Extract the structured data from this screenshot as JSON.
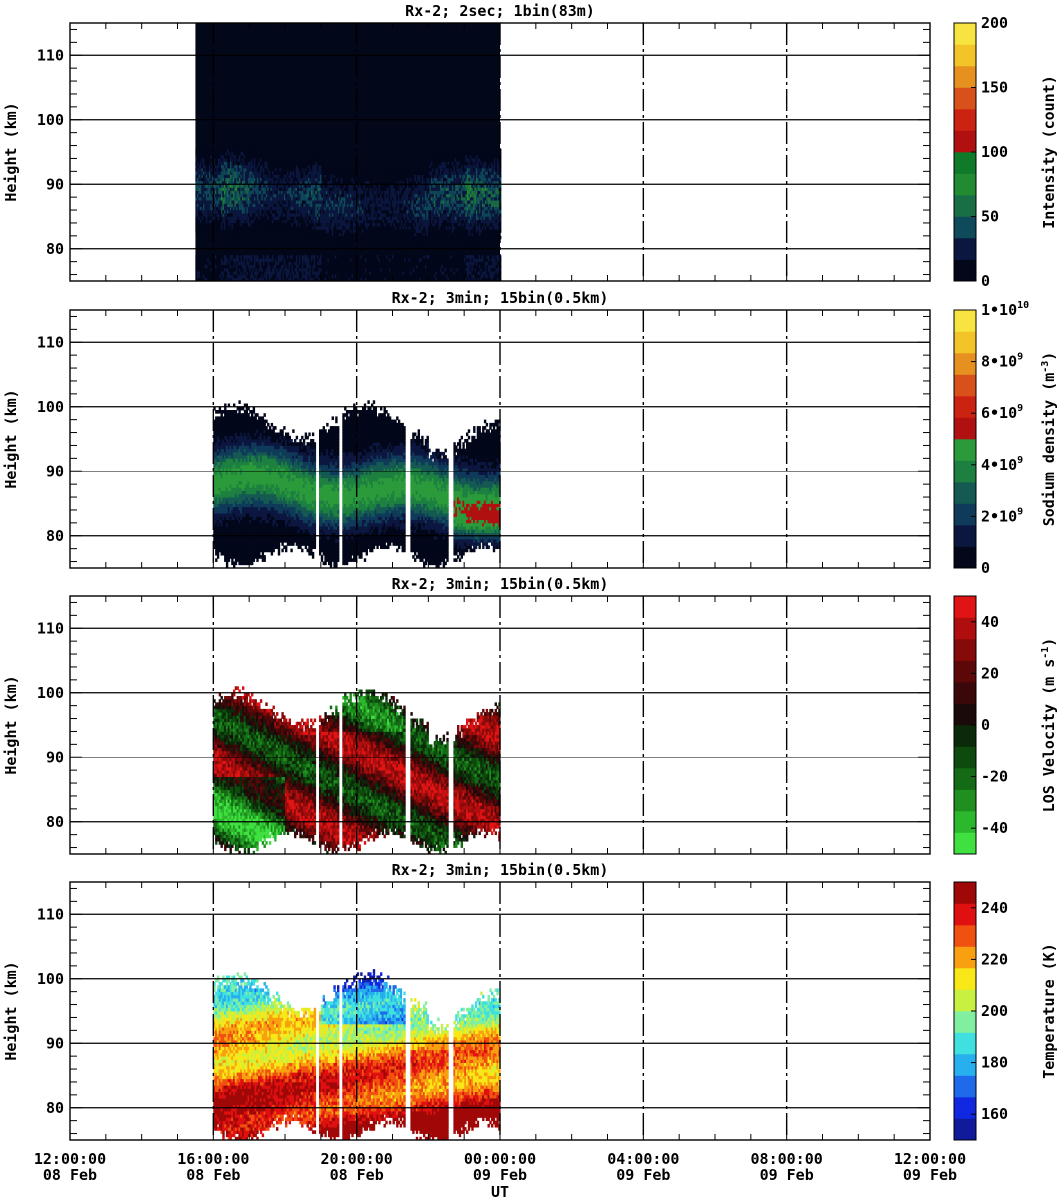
{
  "page": {
    "x_axis_label": "UT"
  },
  "x_ticks": [
    {
      "time": "12:00:00",
      "date": "08 Feb"
    },
    {
      "time": "16:00:00",
      "date": "08 Feb"
    },
    {
      "time": "20:00:00",
      "date": "08 Feb"
    },
    {
      "time": "00:00:00",
      "date": "09 Feb"
    },
    {
      "time": "04:00:00",
      "date": "09 Feb"
    },
    {
      "time": "08:00:00",
      "date": "09 Feb"
    },
    {
      "time": "12:00:00",
      "date": "09 Feb"
    }
  ],
  "chart_data": [
    {
      "type": "heatmap",
      "title": "Rx-2;  2sec; 1bin(83m)",
      "ylabel": "Height (km)",
      "xlim_hours": [
        0,
        24
      ],
      "ylim": [
        75,
        115
      ],
      "y_ticks": [
        80,
        90,
        100,
        110
      ],
      "data_extent_hours": [
        3.5,
        12.0
      ],
      "colorbar": {
        "label": "Intensity (count)",
        "range": [
          0,
          200
        ],
        "tick_labels": [
          {
            "value": 0,
            "text": "0"
          },
          {
            "value": 50,
            "text": "50"
          },
          {
            "value": 100,
            "text": "100"
          },
          {
            "value": 150,
            "text": "150"
          },
          {
            "value": 200,
            "text": "200"
          }
        ],
        "colors": [
          "#03071a",
          "#0c1740",
          "#0e4a5a",
          "#1a6e46",
          "#228a30",
          "#0f7a2a",
          "#b01010",
          "#cc2212",
          "#d8501a",
          "#e5901f",
          "#f2c428",
          "#f7e440"
        ]
      }
    },
    {
      "type": "heatmap",
      "title": "Rx-2; 3min; 15bin(0.5km)",
      "ylabel": "Height (km)",
      "xlim_hours": [
        0,
        24
      ],
      "ylim": [
        75,
        115
      ],
      "y_ticks": [
        80,
        90,
        100,
        110
      ],
      "data_extent_hours": [
        4.0,
        12.0
      ],
      "colorbar": {
        "label": "Sodium density (m-3)",
        "range": [
          0,
          10
        ],
        "tick_labels": [
          {
            "value": 0,
            "text": "0"
          },
          {
            "value": 2,
            "text": "2•10",
            "sup": "9"
          },
          {
            "value": 4,
            "text": "4•10",
            "sup": "9"
          },
          {
            "value": 6,
            "text": "6•10",
            "sup": "9"
          },
          {
            "value": 8,
            "text": "8•10",
            "sup": "9"
          },
          {
            "value": 10,
            "text": "1•10",
            "sup": "10"
          }
        ],
        "colors": [
          "#03071a",
          "#0c1740",
          "#0f3a5a",
          "#145a52",
          "#1d8040",
          "#2a9a3a",
          "#b01010",
          "#cc2212",
          "#d8501a",
          "#e5901f",
          "#f2c428",
          "#f7e440"
        ]
      }
    },
    {
      "type": "heatmap",
      "title": "Rx-2; 3min; 15bin(0.5km)",
      "ylabel": "Height (km)",
      "xlim_hours": [
        0,
        24
      ],
      "ylim": [
        75,
        115
      ],
      "y_ticks": [
        80,
        90,
        100,
        110
      ],
      "data_extent_hours": [
        4.0,
        12.0
      ],
      "colorbar": {
        "label": "LOS Velocity (m s-1)",
        "range": [
          -50,
          50
        ],
        "tick_labels": [
          {
            "value": -40,
            "text": "-40"
          },
          {
            "value": -20,
            "text": "-20"
          },
          {
            "value": 0,
            "text": "0"
          },
          {
            "value": 20,
            "text": "20"
          },
          {
            "value": 40,
            "text": "40"
          }
        ],
        "colors": [
          "#40e040",
          "#2cb82c",
          "#1f8f1f",
          "#156a15",
          "#0e4a0e",
          "#0a2a0a",
          "#1a0a0a",
          "#3a0808",
          "#5c0808",
          "#860a0a",
          "#b00e0e",
          "#e01414"
        ]
      }
    },
    {
      "type": "heatmap",
      "title": "Rx-2; 3min; 15bin(0.5km)",
      "ylabel": "Height (km)",
      "xlim_hours": [
        0,
        24
      ],
      "ylim": [
        75,
        115
      ],
      "y_ticks": [
        80,
        90,
        100,
        110
      ],
      "data_extent_hours": [
        4.0,
        12.0
      ],
      "colorbar": {
        "label": "Temperature (K)",
        "range": [
          150,
          250
        ],
        "tick_labels": [
          {
            "value": 160,
            "text": "160"
          },
          {
            "value": 180,
            "text": "180"
          },
          {
            "value": 200,
            "text": "200"
          },
          {
            "value": 220,
            "text": "220"
          },
          {
            "value": 240,
            "text": "240"
          }
        ],
        "colors": [
          "#101a9a",
          "#1028e0",
          "#1e6aea",
          "#28b0ee",
          "#40e0e0",
          "#80f0a0",
          "#c8f040",
          "#f8e818",
          "#f8a010",
          "#f05010",
          "#e01010",
          "#a00808"
        ]
      }
    }
  ]
}
